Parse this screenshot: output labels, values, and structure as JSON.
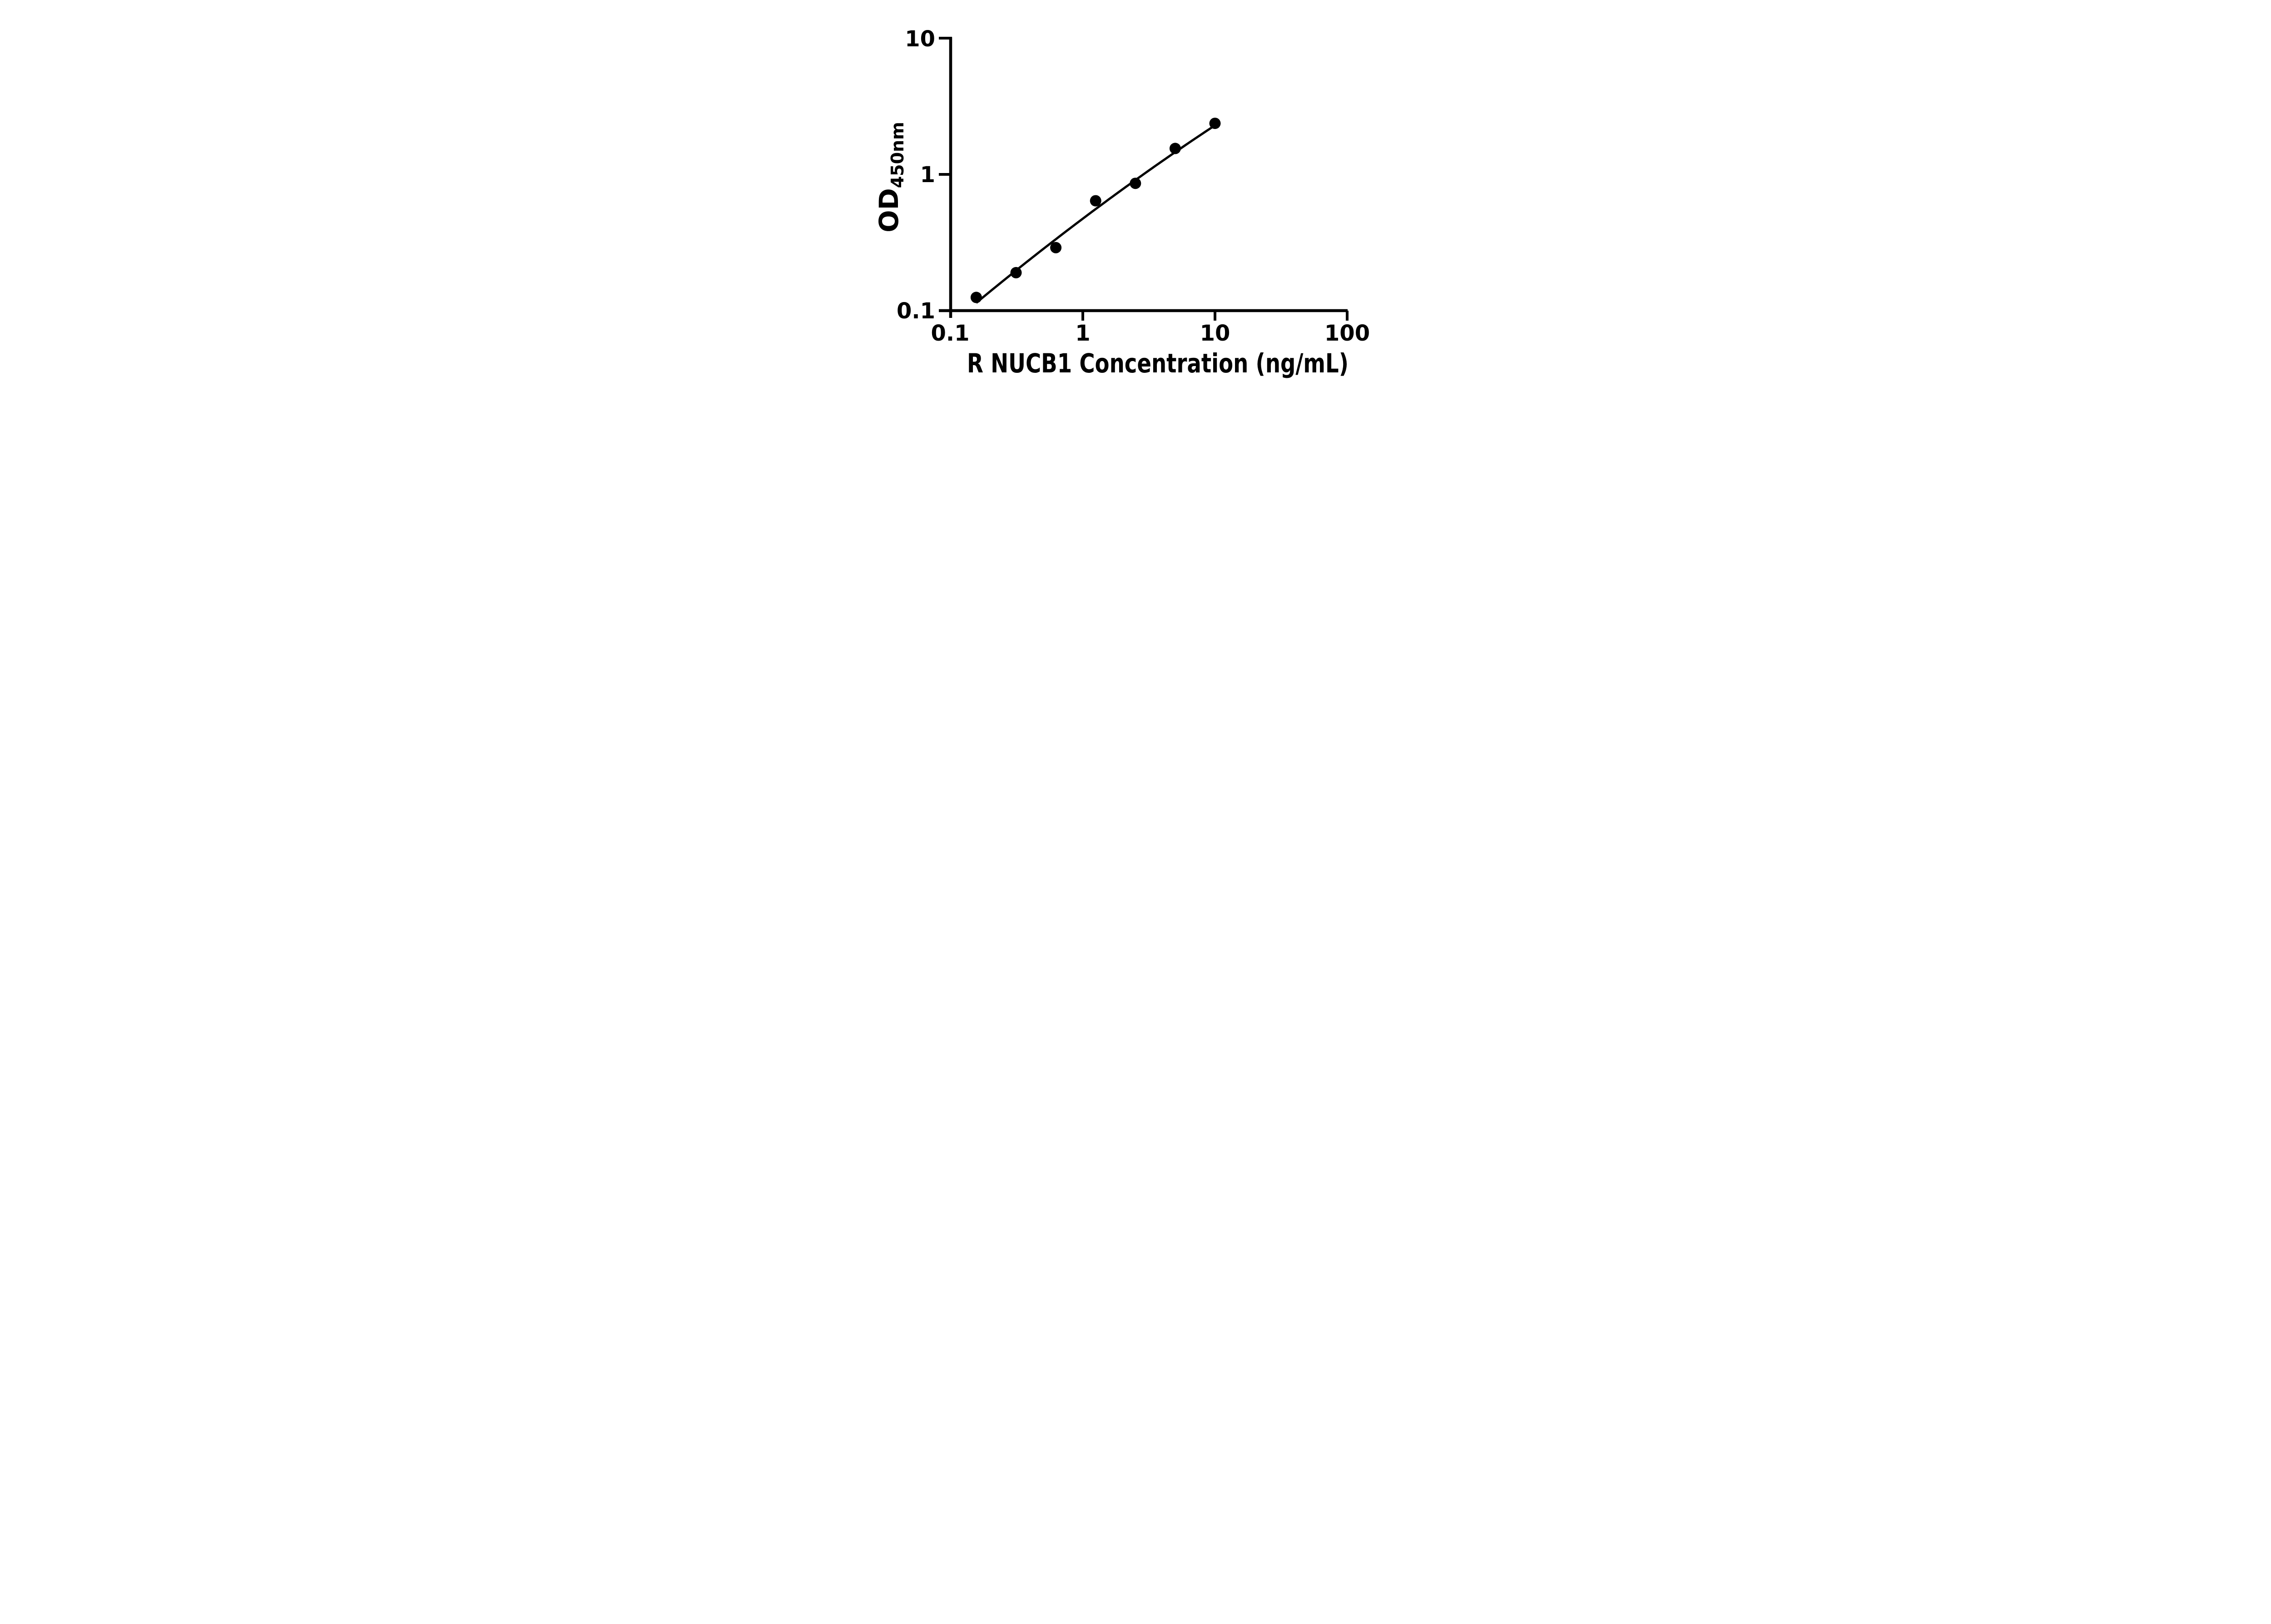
{
  "figure": {
    "background": "#ffffff",
    "ink_color": "#000000"
  },
  "chart_data": {
    "type": "scatter",
    "subtype": "standard-curve-with-fit-line",
    "title": "",
    "xlabel": "R NUCB1 Concentration (ng/mL)",
    "ylabel": "OD",
    "ylabel_subscript": "450nm",
    "x_scale": "log",
    "y_scale": "log",
    "xlim": [
      0.1,
      100
    ],
    "ylim": [
      0.1,
      10
    ],
    "grid": false,
    "legend_position": "none",
    "x_ticks": [
      {
        "value": 0.1,
        "label": "0.1",
        "draw_tick": false
      },
      {
        "value": 1,
        "label": "1",
        "draw_tick": true
      },
      {
        "value": 10,
        "label": "10",
        "draw_tick": true
      },
      {
        "value": 100,
        "label": "100",
        "draw_tick": true
      }
    ],
    "y_ticks": [
      {
        "value": 0.1,
        "label": "0.1",
        "draw_tick": true
      },
      {
        "value": 1,
        "label": "1",
        "draw_tick": true
      },
      {
        "value": 10,
        "label": "10",
        "draw_tick": true
      }
    ],
    "series": [
      {
        "name": "standard-points",
        "kind": "scatter",
        "marker": "filled-circle",
        "color": "#000000",
        "x": [
          0.15625,
          0.3125,
          0.625,
          1.25,
          2.5,
          5,
          10
        ],
        "y": [
          0.125,
          0.19,
          0.29,
          0.64,
          0.86,
          1.55,
          2.37
        ]
      },
      {
        "name": "fit-curve",
        "kind": "line",
        "color": "#000000",
        "model": "logOD = a + b*logC + c*logC^2",
        "params": {
          "a": -0.325,
          "b": 0.73,
          "c": -0.045
        },
        "x_range": [
          0.15625,
          10
        ]
      }
    ]
  }
}
